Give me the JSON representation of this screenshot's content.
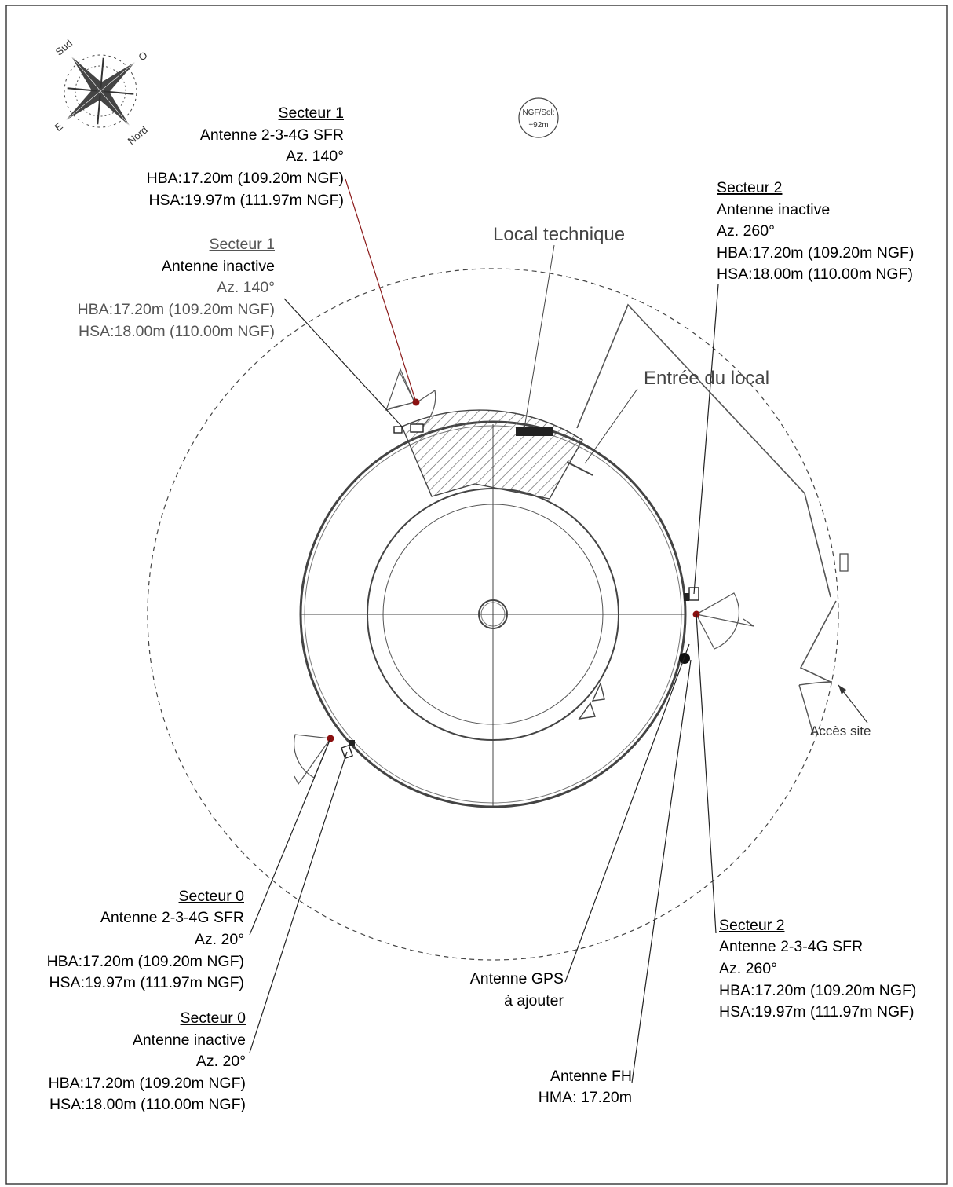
{
  "ngf_badge": {
    "line1": "NGF/Sol:",
    "line2": "+92m"
  },
  "compass": {
    "north": "Nord",
    "south": "Sud",
    "east": "E",
    "west": "O"
  },
  "labels": {
    "local_technique": "Local technique",
    "entree_local": "Entrée du local",
    "acces_site": "Accès site",
    "gps": {
      "line1": "Antenne GPS",
      "line2": "à ajouter"
    },
    "fh": {
      "line1": "Antenne  FH",
      "line2": "HMA: 17.20m"
    }
  },
  "sectors": {
    "s1_active": {
      "title": "Secteur 1",
      "antenna": "Antenne 2-3-4G SFR",
      "azimuth": "Az. 140°",
      "hba": "HBA:17.20m (109.20m NGF)",
      "hsa": "HSA:19.97m (111.97m NGF)"
    },
    "s1_inactive": {
      "title": "Secteur 1",
      "antenna": "Antenne inactive",
      "azimuth": "Az. 140°",
      "hba": "HBA:17.20m (109.20m NGF)",
      "hsa": "HSA:18.00m (110.00m NGF)"
    },
    "s2_inactive": {
      "title": "Secteur 2",
      "antenna": "Antenne inactive",
      "azimuth": "Az. 260°",
      "hba": "HBA:17.20m (109.20m NGF)",
      "hsa": "HSA:18.00m (110.00m NGF)"
    },
    "s2_active": {
      "title": "Secteur 2",
      "antenna": "Antenne 2-3-4G SFR",
      "azimuth": "Az. 260°",
      "hba": "HBA:17.20m (109.20m NGF)",
      "hsa": "HSA:19.97m (111.97m NGF)"
    },
    "s0_active": {
      "title": "Secteur 0",
      "antenna": "Antenne 2-3-4G SFR",
      "azimuth": "Az. 20°",
      "hba": "HBA:17.20m (109.20m NGF)",
      "hsa": "HSA:19.97m (111.97m NGF)"
    },
    "s0_inactive": {
      "title": "Secteur 0",
      "antenna": "Antenne inactive",
      "azimuth": "Az. 20°",
      "hba": "HBA:17.20m (109.20m NGF)",
      "hsa": "HSA:18.00m (110.00m NGF)"
    }
  },
  "colors": {
    "active_antenna": "#8b1010",
    "leader_active": "#8b1a1a",
    "line": "#222222",
    "hatch": "#666666"
  }
}
